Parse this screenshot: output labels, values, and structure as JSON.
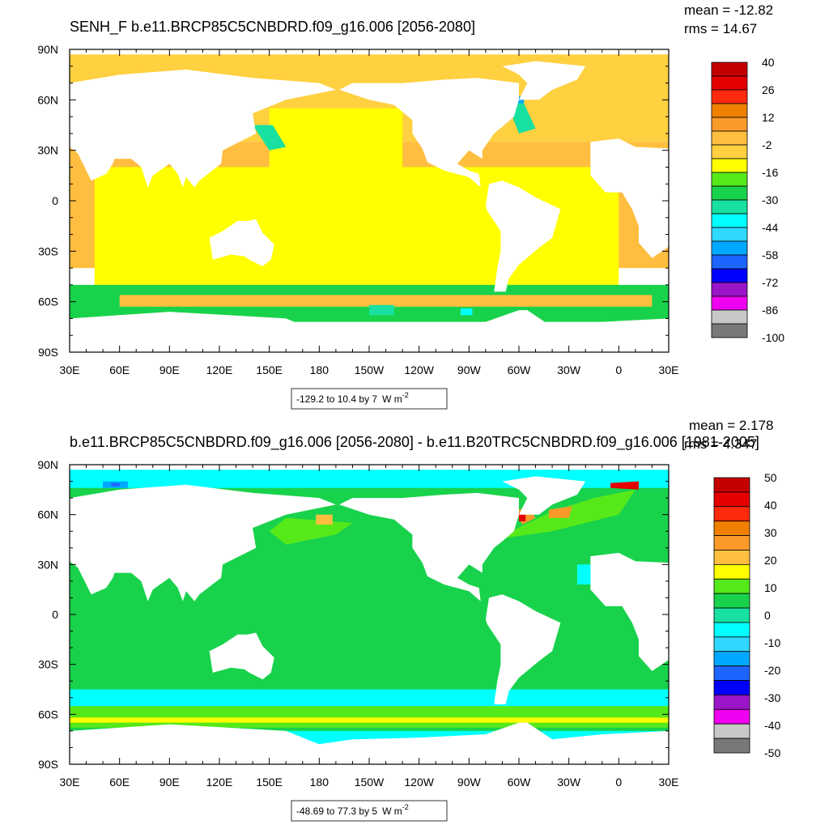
{
  "chart_data": [
    {
      "type": "heatmap",
      "title": "SENH_F b.e11.BRCP85C5CNBDRD.f09_g16.006 [2056-2080]",
      "stats": {
        "mean": "mean = -12.82",
        "rms": "rms = 14.67"
      },
      "x_ticks": [
        "30E",
        "60E",
        "90E",
        "120E",
        "150E",
        "180",
        "150W",
        "120W",
        "90W",
        "60W",
        "30W",
        "0",
        "30E"
      ],
      "y_ticks": [
        "90N",
        "60N",
        "30N",
        "0",
        "30S",
        "60S",
        "90S"
      ],
      "xlim": [
        30,
        390
      ],
      "ylim": [
        -90,
        90
      ],
      "colorbar": {
        "labels": [
          "40",
          "26",
          "12",
          "-2",
          "-16",
          "-30",
          "-44",
          "-58",
          "-72",
          "-86",
          "-100"
        ],
        "colors": [
          "#c40000",
          "#e40000",
          "#ff2a0e",
          "#f08000",
          "#fa9a28",
          "#ffbe40",
          "#ffd040",
          "#ffff00",
          "#56e91a",
          "#19d24c",
          "#18e0a0",
          "#00ffff",
          "#30d8ff",
          "#00a8ff",
          "#1e64ff",
          "#0000ff",
          "#9a14c8",
          "#f000f0",
          "#c8c8c8",
          "#787878"
        ]
      },
      "range_label": "-129.2 to 10.4 by 7",
      "units": "W m",
      "units_exp": "-2"
    },
    {
      "type": "heatmap",
      "title": "b.e11.BRCP85C5CNBDRD.f09_g16.006 [2056-2080] - b.e11.B20TRC5CNBDRD.f09_g16.006 [1981-2005]",
      "stats": {
        "mean": "mean = 2.178",
        "rms": "rms = 4.347"
      },
      "x_ticks": [
        "30E",
        "60E",
        "90E",
        "120E",
        "150E",
        "180",
        "150W",
        "120W",
        "90W",
        "60W",
        "30W",
        "0",
        "30E"
      ],
      "y_ticks": [
        "90N",
        "60N",
        "30N",
        "0",
        "30S",
        "60S",
        "90S"
      ],
      "xlim": [
        30,
        390
      ],
      "ylim": [
        -90,
        90
      ],
      "colorbar": {
        "labels": [
          "50",
          "40",
          "30",
          "20",
          "10",
          "0",
          "-10",
          "-20",
          "-30",
          "-40",
          "-50"
        ],
        "colors": [
          "#c40000",
          "#e40000",
          "#ff2a0e",
          "#f08000",
          "#fa9a28",
          "#ffbe40",
          "#ffff00",
          "#56e91a",
          "#19d24c",
          "#18e0a0",
          "#00ffff",
          "#30d8ff",
          "#00a8ff",
          "#1e64ff",
          "#0000ff",
          "#9a14c8",
          "#f000f0",
          "#c8c8c8",
          "#787878"
        ]
      },
      "range_label": "-48.69 to 77.3 by 5",
      "units": "W m",
      "units_exp": "-2"
    }
  ]
}
